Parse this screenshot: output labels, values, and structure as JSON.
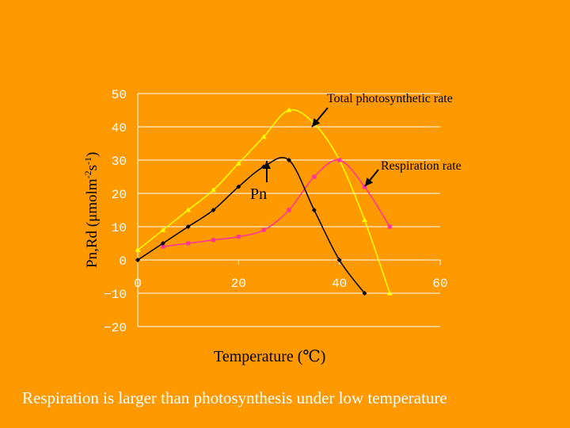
{
  "chart_data": {
    "type": "line",
    "ylabel_main": "Pn,Rd (μmolm",
    "ylabel_sup1": "-2",
    "ylabel_mid": "s",
    "ylabel_sup2": "-1",
    "ylabel_end": ")",
    "xlabel": "Temperature (℃)",
    "xlim": [
      0,
      60
    ],
    "ylim": [
      -20,
      50
    ],
    "xticks": [
      0,
      20,
      40,
      60
    ],
    "yticks": [
      50,
      40,
      30,
      20,
      10,
      0,
      -10,
      -20
    ],
    "ytick_labels": [
      "50",
      "40",
      "30",
      "20",
      "10",
      "0",
      "−10",
      "−20"
    ],
    "grid": "horizontal",
    "series": [
      {
        "key": "total",
        "color": "#FFFF00",
        "marker": "triangle",
        "x": [
          0,
          5,
          10,
          15,
          20,
          25,
          30,
          35,
          40,
          45,
          50
        ],
        "y": [
          3,
          9,
          15,
          21,
          29,
          37,
          45,
          41,
          30,
          12,
          -10
        ]
      },
      {
        "key": "respiration",
        "color": "#FF3399",
        "marker": "square",
        "x": [
          5,
          10,
          15,
          20,
          25,
          30,
          35,
          40,
          45,
          50
        ],
        "y": [
          4,
          5,
          6,
          7,
          9,
          15,
          25,
          30,
          22,
          10
        ]
      },
      {
        "key": "pn",
        "color": "#000000",
        "marker": "diamond",
        "x": [
          0,
          5,
          10,
          15,
          20,
          25,
          30,
          35,
          40,
          45
        ],
        "y": [
          0,
          5,
          10,
          15,
          22,
          28,
          30,
          15,
          0,
          -10
        ]
      }
    ],
    "annotations": {
      "total": "Total photosynthetic rate",
      "respiration": "Respiration rate",
      "pn": "Pn"
    }
  },
  "caption": "Respiration is larger than photosynthesis under low temperature"
}
